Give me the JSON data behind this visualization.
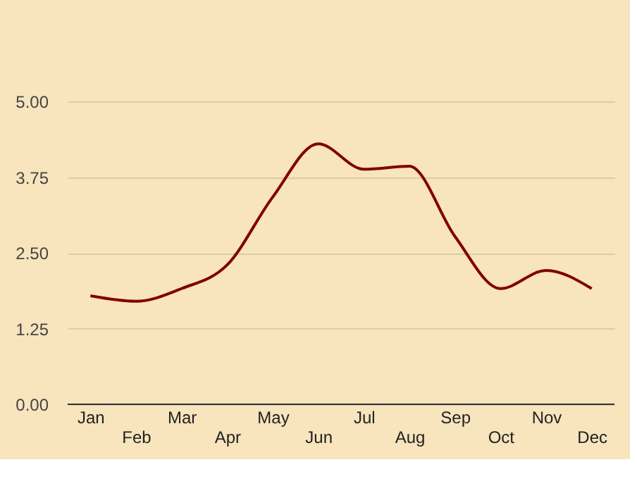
{
  "chart_data": {
    "type": "line",
    "categories": [
      "Jan",
      "Feb",
      "Mar",
      "Apr",
      "May",
      "Jun",
      "Jul",
      "Aug",
      "Sep",
      "Oct",
      "Nov",
      "Dec"
    ],
    "series": [
      {
        "color": "#800000",
        "values": [
          1.79,
          1.7,
          1.91,
          2.3,
          3.42,
          4.3,
          3.88,
          3.93,
          2.77,
          1.91,
          2.21,
          1.91
        ]
      }
    ],
    "ylim": [
      0,
      5
    ],
    "yticks": [
      {
        "value": 0,
        "label": "0.00"
      },
      {
        "value": 1.25,
        "label": "1.25"
      },
      {
        "value": 2.5,
        "label": "2.50"
      },
      {
        "value": 3.75,
        "label": "3.75"
      },
      {
        "value": 5,
        "label": "5.00"
      }
    ],
    "grid": "y",
    "marker": "none",
    "line_style": "solid",
    "legend": false
  }
}
